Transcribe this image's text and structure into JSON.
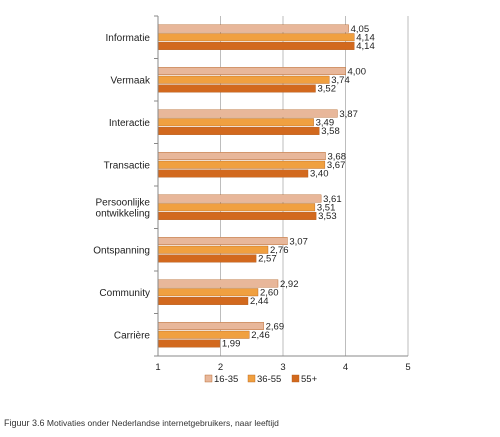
{
  "chart_data": {
    "type": "bar",
    "orientation": "horizontal",
    "categories": [
      "Informatie",
      "Vermaak",
      "Interactie",
      "Transactie",
      "Persoonlijke ontwikkeling",
      "Ontspanning",
      "Community",
      "Carrière"
    ],
    "category_lines": [
      [
        "Informatie"
      ],
      [
        "Vermaak"
      ],
      [
        "Interactie"
      ],
      [
        "Transactie"
      ],
      [
        "Persoonlijke",
        "ontwikkeling"
      ],
      [
        "Ontspanning"
      ],
      [
        "Community"
      ],
      [
        "Carrière"
      ]
    ],
    "series": [
      {
        "name": "16-35",
        "color": "#e8b79a",
        "values": [
          4.05,
          4.0,
          3.87,
          3.68,
          3.61,
          3.07,
          2.92,
          2.69
        ],
        "labels": [
          "4,05",
          "4,00",
          "3,87",
          "3,68",
          "3,61",
          "3,07",
          "2,92",
          "2,69"
        ]
      },
      {
        "name": "36-55",
        "color": "#f0a040",
        "values": [
          4.14,
          3.74,
          3.49,
          3.67,
          3.51,
          2.76,
          2.6,
          2.46
        ],
        "labels": [
          "4,14",
          "3,74",
          "3,49",
          "3,67",
          "3,51",
          "2,76",
          "2,60",
          "2,46"
        ]
      },
      {
        "name": "55+",
        "color": "#d2691e",
        "values": [
          4.14,
          3.52,
          3.58,
          3.4,
          3.53,
          2.57,
          2.44,
          1.99
        ],
        "labels": [
          "4,14",
          "3,52",
          "3,58",
          "3,40",
          "3,53",
          "2,57",
          "2,44",
          "1,99"
        ]
      }
    ],
    "xlim": [
      1,
      5
    ],
    "x_ticks": [
      "1",
      "2",
      "3",
      "4",
      "5"
    ],
    "grid": true,
    "legend": "bottom"
  },
  "caption": {
    "figure_number": "Figuur 3.6",
    "text": "Motivaties onder Nederlandse internetgebruikers, naar leeftijd"
  }
}
